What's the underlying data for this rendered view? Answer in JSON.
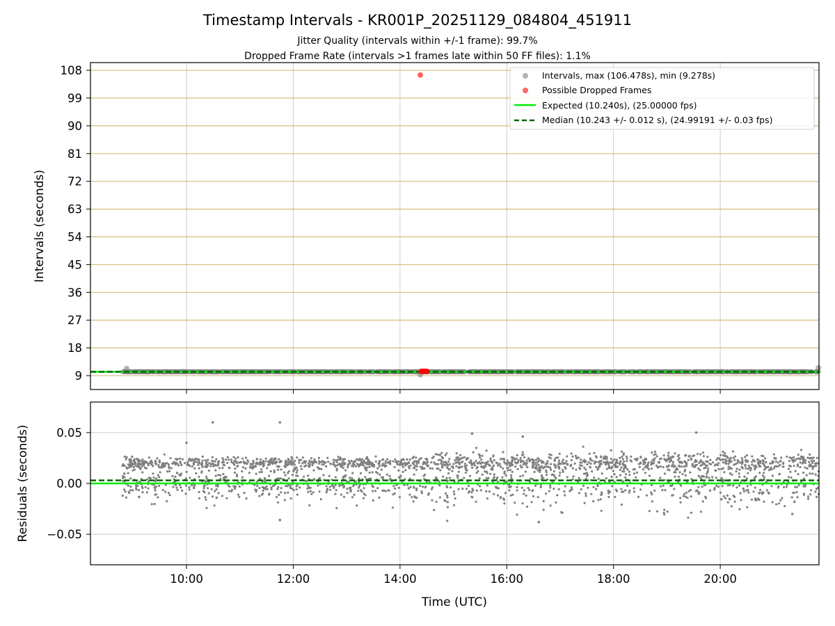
{
  "chart_data": [
    {
      "type": "scatter",
      "title": "Timestamp Intervals - KR001P_20251129_084804_451911",
      "subtitle_jitter": "Jitter Quality (intervals within +/-1 frame): 99.7%",
      "subtitle_dropped": "Dropped Frame Rate (intervals >1 frames late within 50 FF files): 1.1%",
      "ylabel": "Intervals (seconds)",
      "xlabel": "",
      "xlim": [
        8.2,
        21.85
      ],
      "ylim": [
        4.5,
        110.5
      ],
      "yticks": [
        9,
        18,
        27,
        36,
        45,
        54,
        63,
        72,
        81,
        90,
        99,
        108
      ],
      "ytick_labels": [
        "9",
        "18",
        "27",
        "36",
        "45",
        "54",
        "63",
        "72",
        "81",
        "90",
        "99",
        "108"
      ],
      "grid": true,
      "legend_position": "top-right",
      "colors": {
        "intervals": "#808080",
        "dropped": "#ff0000",
        "expected": "#00ee00",
        "median": "#006400",
        "ygrid": "#d2bd7c",
        "xgrid": "#cccccc"
      },
      "series": [
        {
          "name": "Intervals, max (106.478s), min (9.278s)",
          "kind": "scatter",
          "x_range": [
            8.8,
            21.85
          ],
          "typical_y": 10.24,
          "outliers": [
            {
              "x": 8.88,
              "y": 11.3
            },
            {
              "x": 14.38,
              "y": 9.3
            },
            {
              "x": 21.84,
              "y": 11.5
            }
          ]
        },
        {
          "name": "Possible Dropped Frames",
          "kind": "scatter",
          "points": [
            {
              "x": 14.38,
              "y": 106.478
            },
            {
              "x": 14.39,
              "y": 10.4
            },
            {
              "x": 14.41,
              "y": 10.4
            },
            {
              "x": 14.43,
              "y": 10.4
            },
            {
              "x": 14.45,
              "y": 10.4
            },
            {
              "x": 14.47,
              "y": 10.4
            },
            {
              "x": 14.49,
              "y": 10.4
            },
            {
              "x": 14.51,
              "y": 10.4
            }
          ]
        },
        {
          "name": "Expected (10.240s), (25.00000 fps)",
          "kind": "hline",
          "y": 10.24
        },
        {
          "name": "Median (10.243 +/- 0.012 s), (24.99191 +/- 0.03 fps)",
          "kind": "hline-dashed",
          "y": 10.243
        }
      ]
    },
    {
      "type": "scatter",
      "title": "",
      "ylabel": "Residuals (seconds)",
      "xlabel": "Time (UTC)",
      "xlim": [
        8.2,
        21.85
      ],
      "ylim": [
        -0.08,
        0.08
      ],
      "xticks": [
        10,
        12,
        14,
        16,
        18,
        20
      ],
      "xtick_labels": [
        "10:00",
        "12:00",
        "14:00",
        "16:00",
        "18:00",
        "20:00"
      ],
      "yticks": [
        0.05,
        0.0,
        -0.05
      ],
      "ytick_labels": [
        "0.05",
        "0.00",
        "−0.05"
      ],
      "grid": true,
      "series": [
        {
          "name": "Residuals",
          "kind": "scatter",
          "x_range": [
            8.8,
            21.85
          ],
          "clusters": [
            {
              "center": 0.02,
              "spread": 0.003
            },
            {
              "center": 0.0,
              "spread": 0.008
            }
          ],
          "outliers": [
            {
              "x": 10.49,
              "y": 0.06
            },
            {
              "x": 11.75,
              "y": 0.06
            },
            {
              "x": 11.75,
              "y": -0.036
            },
            {
              "x": 16.6,
              "y": -0.038
            },
            {
              "x": 19.55,
              "y": 0.05
            },
            {
              "x": 10.0,
              "y": 0.04
            },
            {
              "x": 15.35,
              "y": 0.049
            },
            {
              "x": 16.3,
              "y": 0.046
            },
            {
              "x": 21.35,
              "y": -0.03
            }
          ]
        },
        {
          "name": "Expected",
          "kind": "hline",
          "y": 0.0
        },
        {
          "name": "Median",
          "kind": "hline-dashed",
          "y": 0.003
        }
      ]
    }
  ]
}
